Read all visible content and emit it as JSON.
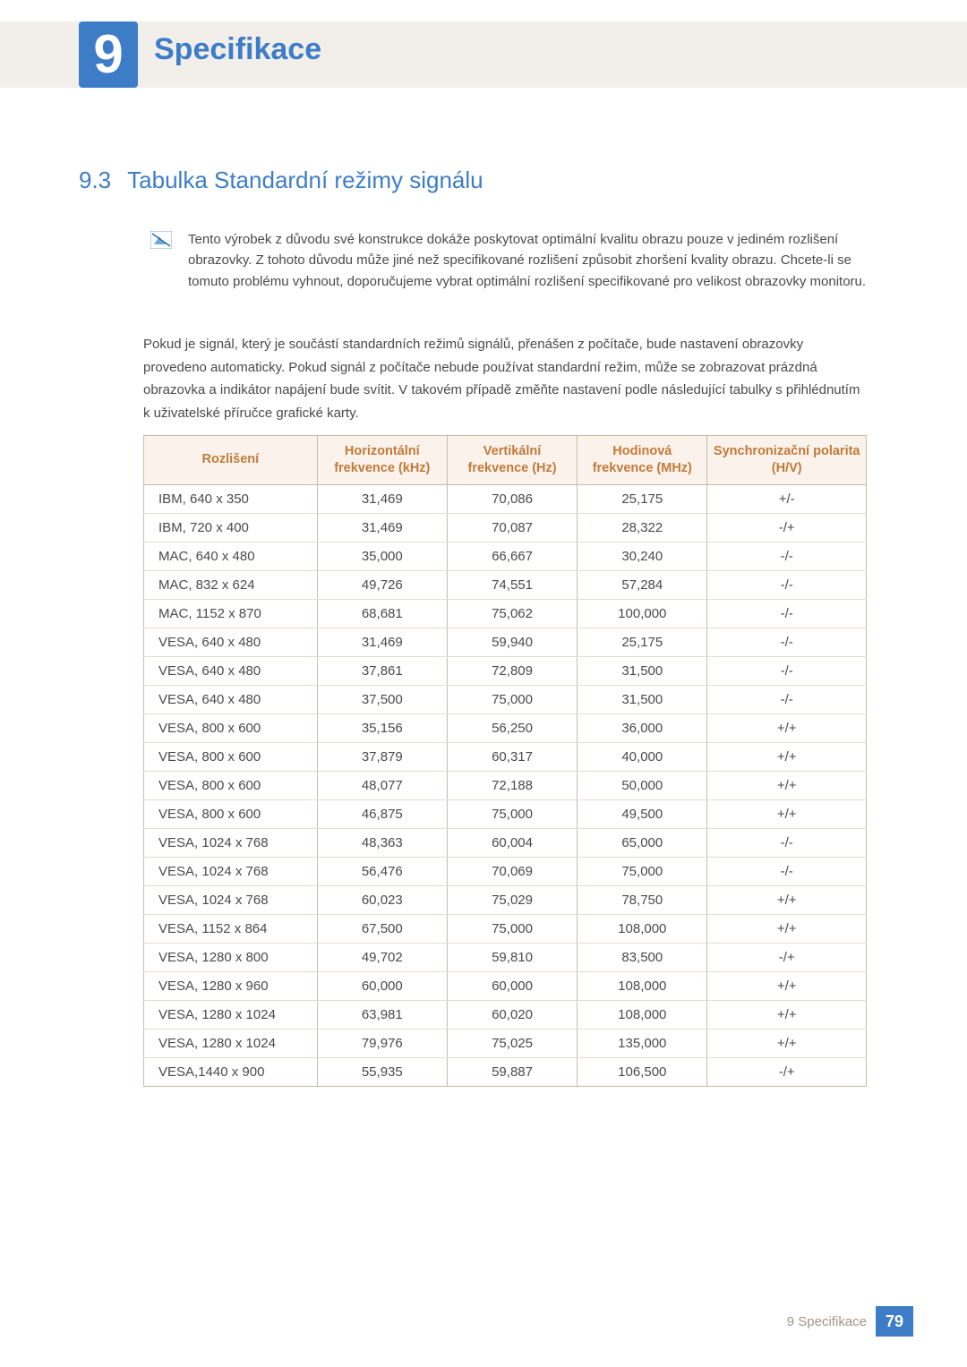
{
  "header": {
    "chapter_number": "9",
    "chapter_title": "Specifikace"
  },
  "section": {
    "number": "9.3",
    "title": "Tabulka Standardní režimy signálu"
  },
  "note": {
    "icon_name": "note-icon",
    "text": "Tento výrobek z důvodu své konstrukce dokáže poskytovat optimální kvalitu obrazu pouze v jediném rozlišení obrazovky. Z tohoto důvodu může jiné než specifikované rozlišení způsobit zhoršení kvality obrazu. Chcete-li se tomuto problému vyhnout, doporučujeme vybrat optimální rozlišení specifikované pro velikost obrazovky monitoru."
  },
  "body_paragraph": "Pokud je signál, který je součástí standardních režimů signálů, přenášen z počítače, bude nastavení obrazovky provedeno automaticky. Pokud signál z počítače nebude používat standardní režim, může se zobrazovat prázdná obrazovka a indikátor napájení bude svítit. V takovém případě změňte nastavení podle následující tabulky s přihlédnutím k uživatelské příručce grafické karty.",
  "table": {
    "columns": [
      "Rozlišení",
      "Horizontální frekvence (kHz)",
      "Vertikální frekvence (Hz)",
      "Hodinová frekvence (MHz)",
      "Synchronizační polarita (H/V)"
    ],
    "col_widths_pct": [
      24,
      18,
      18,
      18,
      22
    ],
    "header_bg": "#fbf3eb",
    "header_color": "#c17a3a",
    "border_color": "#c8bba7",
    "row_border_color": "#e3dccf",
    "rows": [
      [
        "IBM, 640 x 350",
        "31,469",
        "70,086",
        "25,175",
        "+/-"
      ],
      [
        "IBM, 720 x 400",
        "31,469",
        "70,087",
        "28,322",
        "-/+"
      ],
      [
        "MAC, 640 x 480",
        "35,000",
        "66,667",
        "30,240",
        "-/-"
      ],
      [
        "MAC, 832 x 624",
        "49,726",
        "74,551",
        "57,284",
        "-/-"
      ],
      [
        "MAC, 1152 x 870",
        "68,681",
        "75,062",
        "100,000",
        "-/-"
      ],
      [
        "VESA, 640 x 480",
        "31,469",
        "59,940",
        "25,175",
        "-/-"
      ],
      [
        "VESA, 640 x 480",
        "37,861",
        "72,809",
        "31,500",
        "-/-"
      ],
      [
        "VESA, 640 x 480",
        "37,500",
        "75,000",
        "31,500",
        "-/-"
      ],
      [
        "VESA, 800 x 600",
        "35,156",
        "56,250",
        "36,000",
        "+/+"
      ],
      [
        "VESA, 800 x 600",
        "37,879",
        "60,317",
        "40,000",
        "+/+"
      ],
      [
        "VESA, 800 x 600",
        "48,077",
        "72,188",
        "50,000",
        "+/+"
      ],
      [
        "VESA, 800 x 600",
        "46,875",
        "75,000",
        "49,500",
        "+/+"
      ],
      [
        "VESA, 1024 x 768",
        "48,363",
        "60,004",
        "65,000",
        "-/-"
      ],
      [
        "VESA, 1024 x 768",
        "56,476",
        "70,069",
        "75,000",
        "-/-"
      ],
      [
        "VESA, 1024 x 768",
        "60,023",
        "75,029",
        "78,750",
        "+/+"
      ],
      [
        "VESA, 1152 x 864",
        "67,500",
        "75,000",
        "108,000",
        "+/+"
      ],
      [
        "VESA, 1280 x 800",
        "49,702",
        "59,810",
        "83,500",
        "-/+"
      ],
      [
        "VESA, 1280 x 960",
        "60,000",
        "60,000",
        "108,000",
        "+/+"
      ],
      [
        "VESA, 1280 x 1024",
        "63,981",
        "60,020",
        "108,000",
        "+/+"
      ],
      [
        "VESA, 1280 x 1024",
        "79,976",
        "75,025",
        "135,000",
        "+/+"
      ],
      [
        "VESA,1440 x 900",
        "55,935",
        "59,887",
        "106,500",
        "-/+"
      ]
    ]
  },
  "footer": {
    "label": "9 Specifikace",
    "page": "79"
  },
  "colors": {
    "brand_blue": "#3d7dc8",
    "top_band": "#f2eee9",
    "text": "#4a4a4a",
    "footer_label": "#9f9686"
  }
}
